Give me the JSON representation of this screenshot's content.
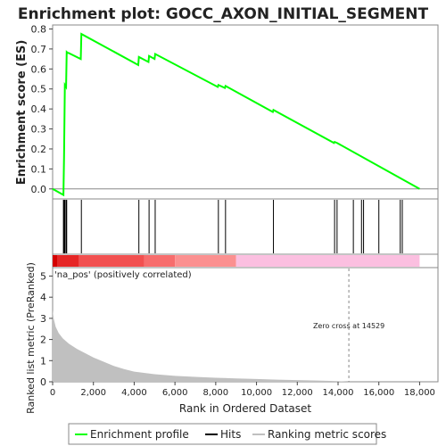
{
  "chart_data": {
    "type": "line",
    "title": "Enrichment plot: GOCC_AXON_INITIAL_SEGMENT",
    "es_panel": {
      "ylabel": "Enrichment score (ES)",
      "ylim": [
        -0.05,
        0.82
      ],
      "yticks": [
        "0.0",
        "0.1",
        "0.2",
        "0.3",
        "0.4",
        "0.5",
        "0.6",
        "0.7",
        "0.8"
      ],
      "ytick_values": [
        0.0,
        0.1,
        0.2,
        0.3,
        0.4,
        0.5,
        0.6,
        0.7,
        0.8
      ],
      "line_color": "#00ff00",
      "x": [
        0,
        530,
        560,
        580,
        600,
        660,
        690,
        750,
        780,
        1380,
        1410,
        4200,
        4230,
        4700,
        4730,
        5000,
        5030,
        8100,
        8130,
        8450,
        8480,
        10800,
        10830,
        13800,
        13830,
        13950,
        18000
      ],
      "y": [
        0.0,
        -0.03,
        0.16,
        0.34,
        0.52,
        0.51,
        0.685,
        0.68,
        0.68,
        0.65,
        0.775,
        0.62,
        0.66,
        0.635,
        0.665,
        0.65,
        0.675,
        0.51,
        0.52,
        0.505,
        0.515,
        0.385,
        0.395,
        0.23,
        0.235,
        0.23,
        0.0
      ]
    },
    "hits": [
      530,
      560,
      580,
      600,
      660,
      690,
      1410,
      4230,
      4730,
      5030,
      8130,
      8480,
      10830,
      13830,
      13950,
      14750,
      15150,
      15250,
      16000,
      17050,
      17150
    ],
    "heatmap": {
      "segments": [
        {
          "from": 0,
          "to": 250,
          "color": "#d40000"
        },
        {
          "from": 250,
          "to": 1300,
          "color": "#e62626"
        },
        {
          "from": 1300,
          "to": 4500,
          "color": "#f25050"
        },
        {
          "from": 4500,
          "to": 6000,
          "color": "#f76d6d"
        },
        {
          "from": 6000,
          "to": 9000,
          "color": "#fb9090"
        },
        {
          "from": 9000,
          "to": 18000,
          "color": "#fbbfe0"
        }
      ]
    },
    "metric_panel": {
      "ylabel": "Ranked list metric (PreRanked)",
      "xlabel": "Rank in Ordered Dataset",
      "ylim": [
        0,
        5.4
      ],
      "yticks": [
        "0",
        "1",
        "2",
        "3",
        "4",
        "5"
      ],
      "ytick_values": [
        0,
        1,
        2,
        3,
        4,
        5
      ],
      "xlim": [
        0,
        18900
      ],
      "xticks": [
        "0",
        "2,000",
        "4,000",
        "6,000",
        "8,000",
        "10,000",
        "12,000",
        "14,000",
        "16,000",
        "18,000"
      ],
      "xtick_values": [
        0,
        2000,
        4000,
        6000,
        8000,
        10000,
        12000,
        14000,
        16000,
        18000
      ],
      "pos_label": "'na_pos' (positively correlated)",
      "zero_cross_label": "Zero cross at 14529",
      "zero_cross": 14529,
      "fill_color": "#c0c0c0",
      "rank": [
        0,
        50,
        150,
        300,
        500,
        800,
        1200,
        1600,
        2000,
        2500,
        3000,
        3500,
        4000,
        5000,
        6000,
        7000,
        8000,
        9000,
        10000,
        11000,
        12000,
        13000,
        14000,
        14529
      ],
      "metric": [
        3.4,
        3.0,
        2.6,
        2.3,
        2.05,
        1.8,
        1.55,
        1.35,
        1.15,
        0.95,
        0.75,
        0.6,
        0.48,
        0.36,
        0.28,
        0.23,
        0.19,
        0.16,
        0.13,
        0.1,
        0.08,
        0.06,
        0.03,
        0.0
      ]
    },
    "legend": [
      {
        "label": "Enrichment profile",
        "color": "#00ff00",
        "kind": "line"
      },
      {
        "label": "Hits",
        "color": "#000000",
        "kind": "line"
      },
      {
        "label": "Ranking metric scores",
        "color": "#c0c0c0",
        "kind": "line"
      }
    ]
  }
}
